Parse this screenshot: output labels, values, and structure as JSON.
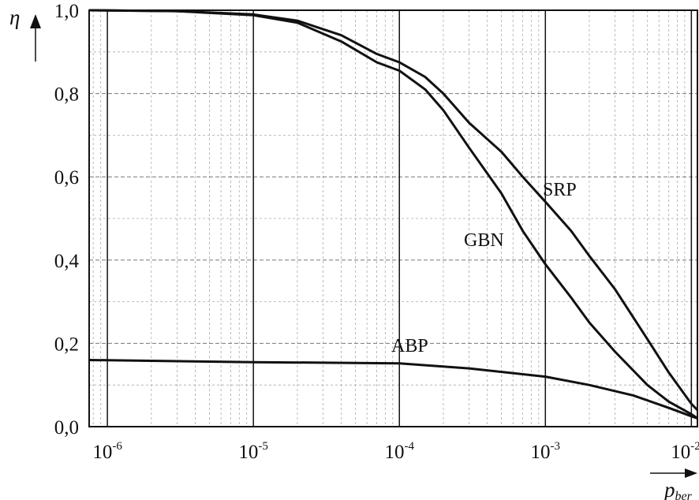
{
  "chart_data": {
    "type": "line",
    "xscale": "log",
    "xlim": [
      7.5e-07,
      0.011
    ],
    "ylim": [
      0.0,
      1.0
    ],
    "grid": true,
    "ylabel": "η",
    "xlabel_main": "p",
    "xlabel_sub": "ber",
    "x_ticks": [
      {
        "base": "10",
        "exp": "-6"
      },
      {
        "base": "10",
        "exp": "-5"
      },
      {
        "base": "10",
        "exp": "-4"
      },
      {
        "base": "10",
        "exp": "-3"
      },
      {
        "base": "10",
        "exp": "-2"
      }
    ],
    "x_tick_values": [
      1e-06,
      1e-05,
      0.0001,
      0.001,
      0.01
    ],
    "y_ticks": [
      "0,0",
      "0,2",
      "0,4",
      "0,6",
      "0,8",
      "1,0"
    ],
    "y_tick_values": [
      0.0,
      0.2,
      0.4,
      0.6,
      0.8,
      1.0
    ],
    "series": [
      {
        "name": "SRP",
        "x": [
          7.5e-07,
          3e-06,
          1e-05,
          2e-05,
          4e-05,
          7e-05,
          0.0001,
          0.00015,
          0.0002,
          0.0003,
          0.0005,
          0.0007,
          0.001,
          0.0015,
          0.002,
          0.003,
          0.005,
          0.007,
          0.01,
          0.011
        ],
        "y": [
          1.0,
          0.998,
          0.99,
          0.975,
          0.94,
          0.895,
          0.875,
          0.84,
          0.8,
          0.73,
          0.66,
          0.6,
          0.54,
          0.47,
          0.41,
          0.33,
          0.21,
          0.13,
          0.055,
          0.04
        ]
      },
      {
        "name": "GBN",
        "x": [
          7.5e-07,
          3e-06,
          1e-05,
          2e-05,
          4e-05,
          7e-05,
          0.0001,
          0.00015,
          0.0002,
          0.0003,
          0.0005,
          0.0007,
          0.001,
          0.0015,
          0.002,
          0.003,
          0.005,
          0.007,
          0.01,
          0.011
        ],
        "y": [
          1.0,
          0.998,
          0.988,
          0.97,
          0.925,
          0.875,
          0.855,
          0.81,
          0.76,
          0.67,
          0.56,
          0.47,
          0.39,
          0.31,
          0.25,
          0.18,
          0.1,
          0.06,
          0.03,
          0.02
        ]
      },
      {
        "name": "ABP",
        "x": [
          7.5e-07,
          1e-05,
          0.0001,
          0.0003,
          0.001,
          0.002,
          0.004,
          0.007,
          0.01,
          0.011
        ],
        "y": [
          0.16,
          0.155,
          0.152,
          0.14,
          0.12,
          0.1,
          0.075,
          0.045,
          0.025,
          0.02
        ]
      }
    ]
  }
}
